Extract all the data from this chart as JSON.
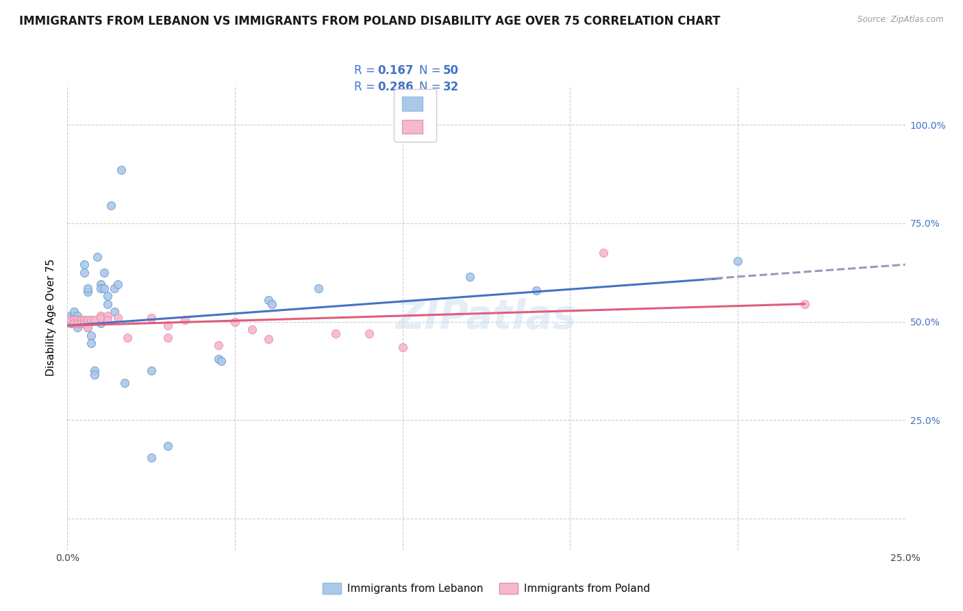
{
  "title": "IMMIGRANTS FROM LEBANON VS IMMIGRANTS FROM POLAND DISABILITY AGE OVER 75 CORRELATION CHART",
  "source": "Source: ZipAtlas.com",
  "ylabel": "Disability Age Over 75",
  "xlim": [
    0.0,
    0.25
  ],
  "ylim": [
    -0.08,
    1.1
  ],
  "yticks_right": [
    0.0,
    0.25,
    0.5,
    0.75,
    1.0
  ],
  "legend_color1": "#aac9e8",
  "legend_color2": "#f5b8cc",
  "line_color1": "#4472c4",
  "line_color2": "#e05c7a",
  "line_dash_color": "#9999bb",
  "dot_color1": "#aac9e8",
  "dot_color2": "#f5b8cc",
  "dot_edge1": "#6699cc",
  "dot_edge2": "#e888a8",
  "watermark": "ZIPatlas",
  "scatter_lebanon": [
    [
      0.001,
      0.495
    ],
    [
      0.001,
      0.505
    ],
    [
      0.001,
      0.515
    ],
    [
      0.002,
      0.495
    ],
    [
      0.002,
      0.505
    ],
    [
      0.002,
      0.515
    ],
    [
      0.002,
      0.525
    ],
    [
      0.003,
      0.495
    ],
    [
      0.003,
      0.505
    ],
    [
      0.003,
      0.485
    ],
    [
      0.003,
      0.515
    ],
    [
      0.004,
      0.505
    ],
    [
      0.004,
      0.495
    ],
    [
      0.005,
      0.625
    ],
    [
      0.005,
      0.645
    ],
    [
      0.006,
      0.575
    ],
    [
      0.006,
      0.585
    ],
    [
      0.006,
      0.495
    ],
    [
      0.006,
      0.485
    ],
    [
      0.007,
      0.465
    ],
    [
      0.007,
      0.445
    ],
    [
      0.008,
      0.375
    ],
    [
      0.008,
      0.365
    ],
    [
      0.009,
      0.665
    ],
    [
      0.01,
      0.595
    ],
    [
      0.01,
      0.585
    ],
    [
      0.01,
      0.495
    ],
    [
      0.011,
      0.625
    ],
    [
      0.011,
      0.585
    ],
    [
      0.012,
      0.565
    ],
    [
      0.012,
      0.545
    ],
    [
      0.013,
      0.795
    ],
    [
      0.014,
      0.585
    ],
    [
      0.014,
      0.525
    ],
    [
      0.015,
      0.595
    ],
    [
      0.016,
      0.885
    ],
    [
      0.017,
      0.345
    ],
    [
      0.025,
      0.375
    ],
    [
      0.025,
      0.155
    ],
    [
      0.03,
      0.185
    ],
    [
      0.045,
      0.405
    ],
    [
      0.046,
      0.4
    ],
    [
      0.06,
      0.555
    ],
    [
      0.061,
      0.545
    ],
    [
      0.075,
      0.585
    ],
    [
      0.12,
      0.615
    ],
    [
      0.14,
      0.58
    ],
    [
      0.2,
      0.655
    ]
  ],
  "scatter_poland": [
    [
      0.001,
      0.505
    ],
    [
      0.002,
      0.505
    ],
    [
      0.002,
      0.495
    ],
    [
      0.003,
      0.505
    ],
    [
      0.003,
      0.495
    ],
    [
      0.004,
      0.505
    ],
    [
      0.004,
      0.495
    ],
    [
      0.005,
      0.505
    ],
    [
      0.005,
      0.495
    ],
    [
      0.006,
      0.505
    ],
    [
      0.006,
      0.485
    ],
    [
      0.007,
      0.505
    ],
    [
      0.008,
      0.505
    ],
    [
      0.01,
      0.515
    ],
    [
      0.01,
      0.51
    ],
    [
      0.012,
      0.515
    ],
    [
      0.012,
      0.505
    ],
    [
      0.015,
      0.51
    ],
    [
      0.018,
      0.46
    ],
    [
      0.025,
      0.51
    ],
    [
      0.03,
      0.49
    ],
    [
      0.03,
      0.46
    ],
    [
      0.035,
      0.505
    ],
    [
      0.045,
      0.44
    ],
    [
      0.05,
      0.5
    ],
    [
      0.055,
      0.48
    ],
    [
      0.06,
      0.455
    ],
    [
      0.08,
      0.47
    ],
    [
      0.09,
      0.47
    ],
    [
      0.1,
      0.435
    ],
    [
      0.16,
      0.675
    ],
    [
      0.22,
      0.545
    ]
  ],
  "trendline_lebanon": [
    [
      0.0,
      0.49
    ],
    [
      0.195,
      0.61
    ]
  ],
  "trendline_lebanon_dash": [
    [
      0.19,
      0.608
    ],
    [
      0.25,
      0.645
    ]
  ],
  "trendline_poland": [
    [
      0.0,
      0.49
    ],
    [
      0.22,
      0.545
    ]
  ],
  "background_color": "#ffffff",
  "grid_color": "#cccccc",
  "title_fontsize": 12,
  "axis_label_fontsize": 11,
  "tick_fontsize": 10,
  "dot_size": 75
}
